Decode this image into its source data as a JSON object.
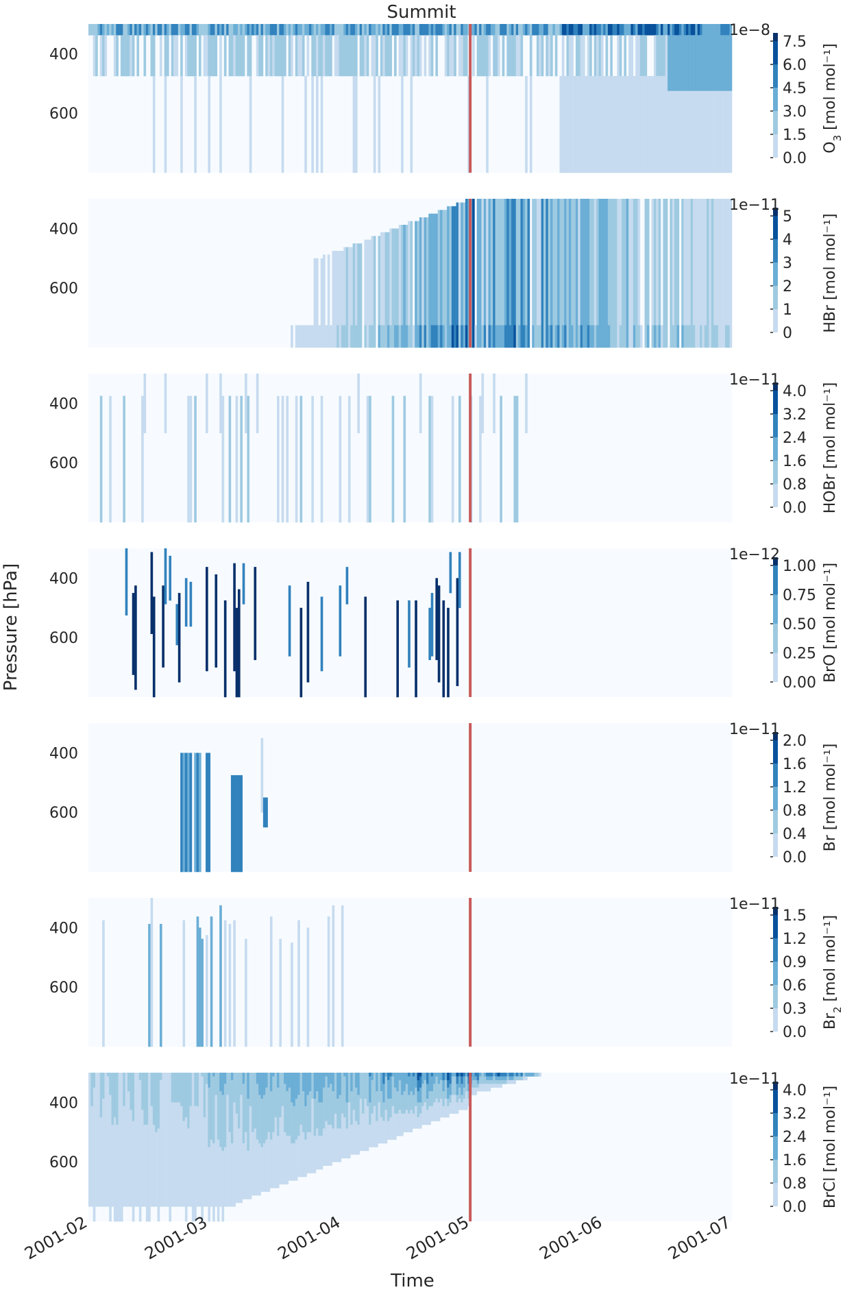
{
  "figure": {
    "title": "Summit",
    "xlabel": "Time",
    "ylabel": "Pressure [hPa]",
    "x_ticks": [
      "2001-02",
      "2001-03",
      "2001-04",
      "2001-05",
      "2001-06",
      "2001-07"
    ],
    "y_ticks": [
      "400",
      "600"
    ],
    "marker_date": "2001-05-01",
    "marker_color": "#c8595a",
    "colors": [
      "#f7fbff",
      "#c6dbef",
      "#9ecae1",
      "#6baed6",
      "#3182bd",
      "#08519c",
      "#08306b"
    ]
  },
  "chart_data": [
    {
      "type": "heatmap",
      "species": "O3",
      "unit": "[mol mol⁻¹]",
      "exponent": "1e−8",
      "levels": [
        "0.0",
        "1.5",
        "3.0",
        "4.5",
        "6.0",
        "7.5"
      ],
      "xlim": [
        "2001-02-01",
        "2001-07-01"
      ],
      "ylim": [
        800,
        300
      ],
      "y_inverted": true
    },
    {
      "type": "heatmap",
      "species": "HBr",
      "unit": "[mol mol⁻¹]",
      "exponent": "1e−11",
      "levels": [
        "0",
        "1",
        "2",
        "3",
        "4",
        "5"
      ],
      "xlim": [
        "2001-02-01",
        "2001-07-01"
      ],
      "ylim": [
        800,
        300
      ],
      "y_inverted": true
    },
    {
      "type": "heatmap",
      "species": "HOBr",
      "unit": "[mol mol⁻¹]",
      "exponent": "1e−11",
      "levels": [
        "0.0",
        "0.8",
        "1.6",
        "2.4",
        "3.2",
        "4.0"
      ],
      "xlim": [
        "2001-02-01",
        "2001-07-01"
      ],
      "ylim": [
        800,
        300
      ],
      "y_inverted": true
    },
    {
      "type": "heatmap",
      "species": "BrO",
      "unit": "[mol mol⁻¹]",
      "exponent": "1e−12",
      "levels": [
        "0.00",
        "0.25",
        "0.50",
        "0.75",
        "1.00"
      ],
      "xlim": [
        "2001-02-01",
        "2001-07-01"
      ],
      "ylim": [
        800,
        300
      ],
      "y_inverted": true
    },
    {
      "type": "heatmap",
      "species": "Br",
      "unit": "[mol mol⁻¹]",
      "exponent": "1e−11",
      "levels": [
        "0.0",
        "0.4",
        "0.8",
        "1.2",
        "1.6",
        "2.0"
      ],
      "xlim": [
        "2001-02-01",
        "2001-07-01"
      ],
      "ylim": [
        800,
        300
      ],
      "y_inverted": true
    },
    {
      "type": "heatmap",
      "species": "Br2",
      "unit": "[mol mol⁻¹]",
      "exponent": "1e−11",
      "levels": [
        "0.0",
        "0.3",
        "0.6",
        "0.9",
        "1.2",
        "1.5"
      ],
      "xlim": [
        "2001-02-01",
        "2001-07-01"
      ],
      "ylim": [
        800,
        300
      ],
      "y_inverted": true
    },
    {
      "type": "heatmap",
      "species": "BrCl",
      "unit": "[mol mol⁻¹]",
      "exponent": "1e−11",
      "levels": [
        "0.0",
        "0.8",
        "1.6",
        "2.4",
        "3.2",
        "4.0"
      ],
      "xlim": [
        "2001-02-01",
        "2001-07-01"
      ],
      "ylim": [
        800,
        300
      ],
      "y_inverted": true
    }
  ]
}
